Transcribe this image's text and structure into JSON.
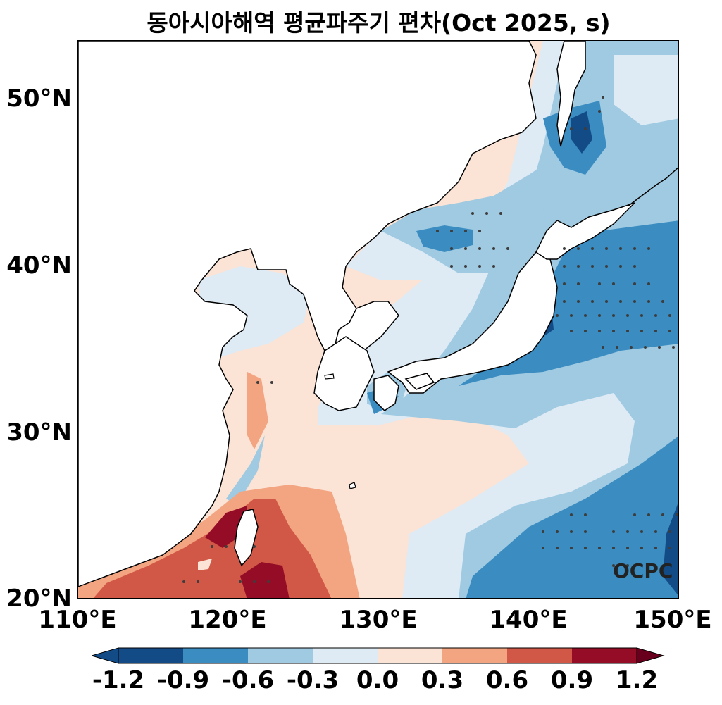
{
  "title": "동아시아해역 평균파주기 편차(Oct 2025, s)",
  "map": {
    "projection": "PlateCarree",
    "lon_range": [
      110,
      150
    ],
    "lat_range": [
      20,
      53.5
    ],
    "lat_ticks": [
      "20°N",
      "30°N",
      "40°N",
      "50°N"
    ],
    "lon_ticks": [
      "110°E",
      "120°E",
      "130°E",
      "140°E",
      "150°E"
    ],
    "watermark": "OCPC",
    "colors": {
      "neg_1.2": "#134b87",
      "neg_0.9": "#3a8cc1",
      "neg_0.6": "#9fcae1",
      "neg_0.3": "#deebf5",
      "pos_0.3": "#fbe3d6",
      "pos_0.6": "#f3a481",
      "pos_0.9": "#d15847",
      "pos_1.2": "#950c26",
      "land": "#ffffff",
      "coast": "#000000",
      "stipple": "#3d3d3d"
    }
  },
  "colorbar": {
    "ticks": [
      "-1.2",
      "-0.9",
      "-0.6",
      "-0.3",
      "0.0",
      "0.3",
      "0.6",
      "0.9",
      "1.2"
    ],
    "colors": [
      "#134b87",
      "#3a8cc1",
      "#9fcae1",
      "#deebf5",
      "#fbe3d6",
      "#f3a481",
      "#d15847",
      "#950c26"
    ]
  }
}
